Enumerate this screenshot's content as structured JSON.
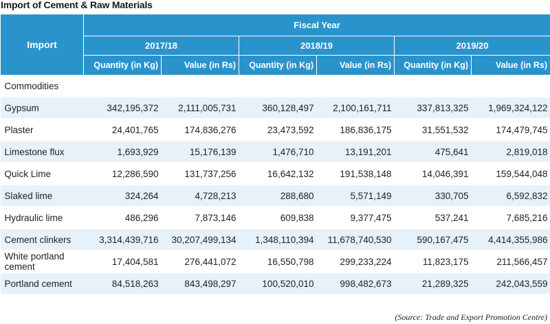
{
  "title": "Import of Cement & Raw Materials",
  "header": {
    "import_label": "Import",
    "fiscal_year_label": "Fiscal Year",
    "years": [
      "2017/18",
      "2018/19",
      "2019/20"
    ],
    "quantity_label": "Quantity (in Kg)",
    "value_label": "Value (in Rs)"
  },
  "section_label": "Commodities",
  "rows": [
    {
      "name": "Gypsum",
      "values": [
        "342,195,372",
        "2,111,005,731",
        "360,128,497",
        "2,100,161,711",
        "337,813,325",
        "1,969,324,122"
      ]
    },
    {
      "name": "Plaster",
      "values": [
        "24,401,765",
        "174,836,276",
        "23,473,592",
        "186,836,175",
        "31,551,532",
        "174,479,745"
      ]
    },
    {
      "name": "Limestone flux",
      "values": [
        "1,693,929",
        "15,176,139",
        "1,476,710",
        "13,191,201",
        "475,641",
        "2,819,018"
      ]
    },
    {
      "name": "Quick Lime",
      "values": [
        "12,286,590",
        "131,737,256",
        "16,642,132",
        "191,538,148",
        "14,046,391",
        "159,544,048"
      ]
    },
    {
      "name": "Slaked lime",
      "values": [
        "324,264",
        "4,728,213",
        "288,680",
        "5,571,149",
        "330,705",
        "6,592,832"
      ]
    },
    {
      "name": "Hydraulic lime",
      "values": [
        "486,296",
        "7,873,146",
        "609,838",
        "9,377,475",
        "537,241",
        "7,685,216"
      ]
    },
    {
      "name": "Cement clinkers",
      "values": [
        "3,314,439,716",
        "30,207,499,134",
        "1,348,110,394",
        "11,678,740,530",
        "590,167,475",
        "4,414,355,986"
      ]
    },
    {
      "name": "White portland cement",
      "values": [
        "17,404,581",
        "276,441,072",
        "16,550,798",
        "299,233,224",
        "11,823,175",
        "211,566,457"
      ]
    },
    {
      "name": "Portland cement",
      "values": [
        "84,518,263",
        "843,498,297",
        "100,520,010",
        "998,482,673",
        "21,289,325",
        "242,043,559"
      ]
    }
  ],
  "source": "(Source: Trade and Export Promotion Centre)"
}
